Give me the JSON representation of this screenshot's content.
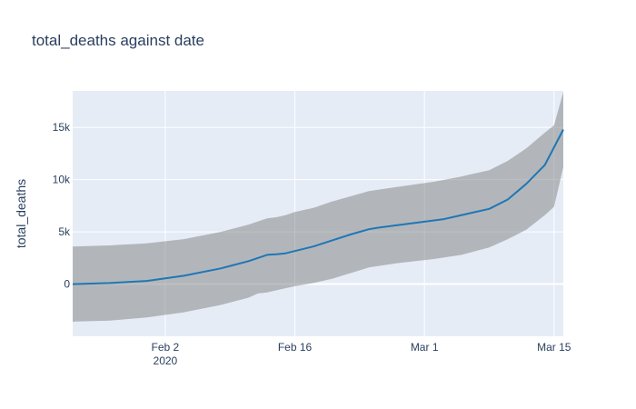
{
  "chart_data": {
    "type": "line",
    "title": "total_deaths against date",
    "xlabel": "",
    "ylabel": "total_deaths",
    "x_axis": {
      "type": "date",
      "range": [
        "2020-01-23",
        "2020-03-16"
      ],
      "ticks": [
        {
          "date": "2020-02-02",
          "label": "Feb 2",
          "sublabel": "2020"
        },
        {
          "date": "2020-02-16",
          "label": "Feb 16"
        },
        {
          "date": "2020-03-01",
          "label": "Mar 1"
        },
        {
          "date": "2020-03-15",
          "label": "Mar 15"
        }
      ]
    },
    "y_axis": {
      "range": [
        -5000,
        18500
      ],
      "ticks": [
        {
          "value": 0,
          "label": "0"
        },
        {
          "value": 5000,
          "label": "5k"
        },
        {
          "value": 10000,
          "label": "10k"
        },
        {
          "value": 15000,
          "label": "15k"
        }
      ]
    },
    "grid": true,
    "legend": "none",
    "colors": {
      "plot_bg": "#e5ecf6",
      "grid": "#ffffff",
      "line": "#1f77b4",
      "band": "#808080",
      "text": "#2a3f5f"
    },
    "series": [
      {
        "type": "line",
        "x": [
          "2020-01-23",
          "2020-01-27",
          "2020-01-31",
          "2020-02-04",
          "2020-02-08",
          "2020-02-11",
          "2020-02-13",
          "2020-02-14",
          "2020-02-15",
          "2020-02-18",
          "2020-02-22",
          "2020-02-24",
          "2020-02-25",
          "2020-03-03",
          "2020-03-06",
          "2020-03-08",
          "2020-03-10",
          "2020-03-12",
          "2020-03-13",
          "2020-03-14",
          "2020-03-16"
        ],
        "y": [
          0,
          100,
          300,
          800,
          1500,
          2200,
          2800,
          2850,
          2950,
          3600,
          4750,
          5250,
          5400,
          6200,
          6800,
          7200,
          8100,
          9600,
          10500,
          11400,
          14800
        ]
      },
      {
        "type": "band",
        "x": [
          "2020-01-23",
          "2020-01-27",
          "2020-01-31",
          "2020-02-04",
          "2020-02-08",
          "2020-02-11",
          "2020-02-12",
          "2020-02-13",
          "2020-02-14",
          "2020-02-15",
          "2020-02-16",
          "2020-02-18",
          "2020-02-20",
          "2020-02-24",
          "2020-02-27",
          "2020-03-02",
          "2020-03-05",
          "2020-03-08",
          "2020-03-10",
          "2020-03-12",
          "2020-03-14",
          "2020-03-15",
          "2020-03-16"
        ],
        "upper": [
          3600,
          3700,
          3900,
          4300,
          5000,
          5700,
          6000,
          6300,
          6400,
          6600,
          6900,
          7300,
          7900,
          8900,
          9300,
          9800,
          10300,
          10900,
          11800,
          13000,
          14500,
          15200,
          18400
        ],
        "lower": [
          -3600,
          -3500,
          -3200,
          -2700,
          -2000,
          -1300,
          -900,
          -800,
          -600,
          -400,
          -200,
          100,
          500,
          1600,
          2000,
          2400,
          2800,
          3500,
          4300,
          5200,
          6600,
          7400,
          11200
        ]
      }
    ]
  }
}
